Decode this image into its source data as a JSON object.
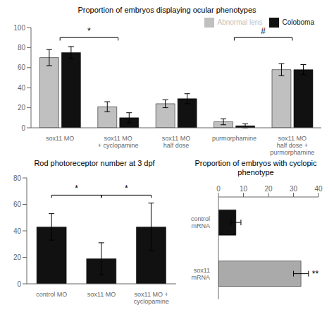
{
  "chart_data": [
    {
      "type": "bar",
      "title": "Proportion of embryos displaying ocular phenotypes",
      "categories": [
        "sox11 MO",
        "sox11 MO\n+ cyclopamine",
        "sox11 MO\nhalf dose",
        "purmorphamine",
        "sox11 MO\nhalf dose +\npurmorphamine"
      ],
      "series": [
        {
          "name": "Abnormal lens",
          "color": "#c0c0c0",
          "values": [
            70,
            21,
            24,
            6,
            58
          ],
          "errors": [
            8,
            5,
            4,
            3,
            6
          ]
        },
        {
          "name": "Coloboma",
          "color": "#111111",
          "values": [
            75,
            10,
            29,
            2,
            58
          ],
          "errors": [
            6,
            5,
            5,
            2,
            5
          ]
        }
      ],
      "ylim": [
        0,
        100
      ],
      "yticks": [
        0,
        20,
        40,
        60,
        80,
        100
      ],
      "grid": false,
      "legend": "upper right",
      "annotations": [
        {
          "text": "*",
          "categories": [
            "sox11 MO",
            "sox11 MO\n+ cyclopamine"
          ]
        },
        {
          "text": "#",
          "categories": [
            "purmorphamine",
            "sox11 MO\nhalf dose +\npurmorphamine"
          ]
        }
      ]
    },
    {
      "type": "bar",
      "title": "Proportion of embryos with cyclopic phenotype",
      "orientation": "horizontal",
      "categories": [
        "control\nmRNA",
        "sox11\nmRNA"
      ],
      "values": [
        7,
        33
      ],
      "errors": [
        2,
        3
      ],
      "colors": [
        "#111111",
        "#aaaaaa"
      ],
      "xlim": [
        0,
        40
      ],
      "xticks": [
        0,
        10,
        20,
        30,
        40
      ],
      "grid": false,
      "annotations": [
        {
          "text": "**",
          "categories": [
            "sox11\nmRNA"
          ]
        }
      ]
    },
    {
      "type": "bar",
      "title": "Rod photoreceptor number at 3 dpf",
      "categories": [
        "control MO",
        "sox11 MO",
        "sox11 MO +\ncyclopamine"
      ],
      "values": [
        43,
        19,
        43
      ],
      "errors": [
        10,
        12,
        18
      ],
      "color": "#111111",
      "ylim": [
        0,
        80
      ],
      "yticks": [
        0,
        20,
        40,
        60,
        80
      ],
      "grid": false,
      "annotations": [
        {
          "text": "*",
          "categories": [
            "control MO",
            "sox11 MO"
          ]
        },
        {
          "text": "*",
          "categories": [
            "sox11 MO",
            "sox11 MO +\ncyclopamine"
          ]
        }
      ]
    }
  ]
}
